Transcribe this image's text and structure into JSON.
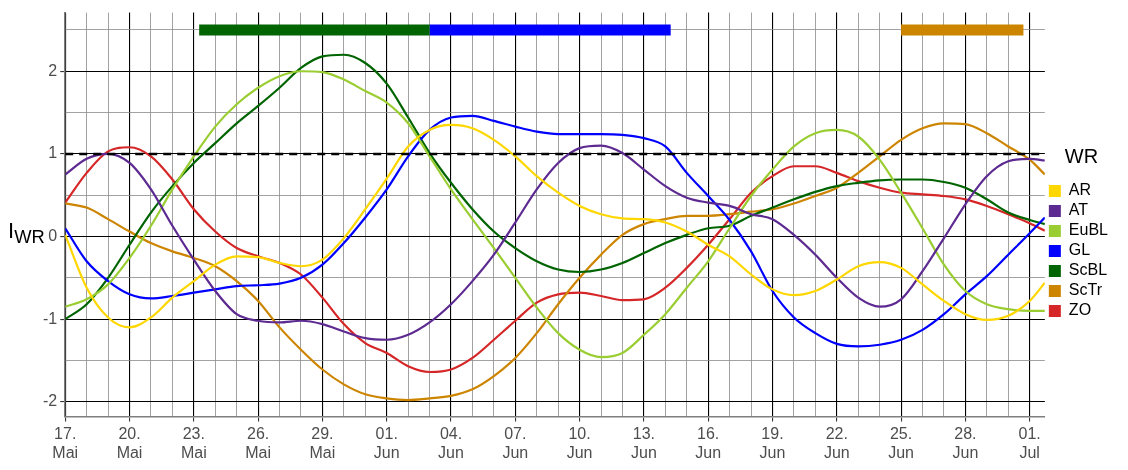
{
  "chart_data": {
    "type": "line",
    "ylabel": "I$_{WR}$",
    "legend_title": "WR",
    "legend": "right",
    "grid": true,
    "marker": "none",
    "line_style": "solid",
    "x": [
      "--05-17",
      "--05-18",
      "--05-19",
      "--05-20",
      "--05-21",
      "--05-22",
      "--05-23",
      "--05-24",
      "--05-25",
      "--05-26",
      "--05-27",
      "--05-28",
      "--05-29",
      "--05-30",
      "--05-31",
      "--06-01",
      "--06-02",
      "--06-03",
      "--06-04",
      "--06-05",
      "--06-06",
      "--06-07",
      "--06-08",
      "--06-09",
      "--06-10",
      "--06-11",
      "--06-12",
      "--06-13",
      "--06-14",
      "--06-15",
      "--06-16",
      "--06-17",
      "--06-18",
      "--06-19",
      "--06-20",
      "--06-21",
      "--06-22",
      "--06-23",
      "--06-24",
      "--06-25",
      "--06-26",
      "--06-27",
      "--06-28",
      "--06-29",
      "--06-30",
      "--07-01",
      "--07-01T17:00"
    ],
    "xlim": [
      "--05-17",
      "--07-01T17:00"
    ],
    "xticks": [
      {
        "value": "--05-17",
        "label": "17. Mai"
      },
      {
        "value": "--05-18",
        "label": null
      },
      {
        "value": "--05-19",
        "label": null
      },
      {
        "value": "--05-20",
        "label": "20. Mai"
      },
      {
        "value": "--05-21",
        "label": null
      },
      {
        "value": "--05-22",
        "label": null
      },
      {
        "value": "--05-23",
        "label": "23. Mai"
      },
      {
        "value": "--05-24",
        "label": null
      },
      {
        "value": "--05-25",
        "label": null
      },
      {
        "value": "--05-26",
        "label": "26. Mai"
      },
      {
        "value": "--05-27",
        "label": null
      },
      {
        "value": "--05-28",
        "label": null
      },
      {
        "value": "--05-29",
        "label": "29. Mai"
      },
      {
        "value": "--05-30",
        "label": null
      },
      {
        "value": "--05-31",
        "label": null
      },
      {
        "value": "--06-01",
        "label": "01. Jun"
      },
      {
        "value": "--06-02",
        "label": null
      },
      {
        "value": "--06-03",
        "label": null
      },
      {
        "value": "--06-04",
        "label": "04. Jun"
      },
      {
        "value": "--06-05",
        "label": null
      },
      {
        "value": "--06-06",
        "label": null
      },
      {
        "value": "--06-07",
        "label": "07. Jun"
      },
      {
        "value": "--06-08",
        "label": null
      },
      {
        "value": "--06-09",
        "label": null
      },
      {
        "value": "--06-10",
        "label": "10. Jun"
      },
      {
        "value": "--06-11",
        "label": null
      },
      {
        "value": "--06-12",
        "label": null
      },
      {
        "value": "--06-13",
        "label": "13. Jun"
      },
      {
        "value": "--06-14",
        "label": null
      },
      {
        "value": "--06-15",
        "label": null
      },
      {
        "value": "--06-16",
        "label": "16. Jun"
      },
      {
        "value": "--06-17",
        "label": null
      },
      {
        "value": "--06-18",
        "label": null
      },
      {
        "value": "--06-19",
        "label": "19. Jun"
      },
      {
        "value": "--06-20",
        "label": null
      },
      {
        "value": "--06-21",
        "label": null
      },
      {
        "value": "--06-22",
        "label": "22. Jun"
      },
      {
        "value": "--06-23",
        "label": null
      },
      {
        "value": "--06-24",
        "label": null
      },
      {
        "value": "--06-25",
        "label": "25. Jun"
      },
      {
        "value": "--06-26",
        "label": null
      },
      {
        "value": "--06-27",
        "label": null
      },
      {
        "value": "--06-28",
        "label": "28. Jun"
      },
      {
        "value": "--06-29",
        "label": null
      },
      {
        "value": "--06-30",
        "label": null
      },
      {
        "value": "--07-01",
        "label": "01. Jul"
      }
    ],
    "ylim": [
      -2.18,
      2.71
    ],
    "yticks": [
      -2,
      {
        "value": -1.5,
        "label": null
      },
      -1,
      {
        "value": -0.5,
        "label": null
      },
      0,
      {
        "value": 0.5,
        "label": null
      },
      1,
      {
        "value": 1.5,
        "label": null
      },
      2,
      {
        "value": 2.5,
        "label": null
      }
    ],
    "ref_lines": [
      {
        "axis": "y",
        "value": 1,
        "color": "#000000",
        "line_style": "dashed"
      }
    ],
    "series": [
      {
        "type": "line",
        "color": "#006400",
        "x": [
          "--05-23T06:00",
          "--06-03"
        ],
        "values": [
          2.5,
          2.5
        ]
      },
      {
        "type": "line",
        "color": "#0000ff",
        "x": [
          "--06-03",
          "--06-14T06:00"
        ],
        "values": [
          2.5,
          2.5
        ]
      },
      {
        "type": "line",
        "color": "#cd8500",
        "x": [
          "--06-25",
          "--06-30T17:00"
        ],
        "values": [
          2.5,
          2.5
        ]
      },
      {
        "name": "AR",
        "color": "#ffd700",
        "values": [
          0.02,
          -0.62,
          -0.98,
          -1.1,
          -0.98,
          -0.74,
          -0.54,
          -0.34,
          -0.24,
          -0.25,
          -0.32,
          -0.36,
          -0.28,
          -0.02,
          0.33,
          0.7,
          1.09,
          1.29,
          1.35,
          1.31,
          1.17,
          0.97,
          0.73,
          0.53,
          0.37,
          0.27,
          0.22,
          0.21,
          0.17,
          0.06,
          -0.1,
          -0.24,
          -0.46,
          -0.64,
          -0.71,
          -0.66,
          -0.52,
          -0.36,
          -0.31,
          -0.38,
          -0.58,
          -0.78,
          -0.94,
          -1.01,
          -0.96,
          -0.78,
          -0.56
        ]
      },
      {
        "name": "AT",
        "color": "#5d2a91",
        "values": [
          0.75,
          0.94,
          1.0,
          0.89,
          0.57,
          0.13,
          -0.28,
          -0.66,
          -0.94,
          -1.02,
          -1.04,
          -1.02,
          -1.06,
          -1.15,
          -1.23,
          -1.25,
          -1.19,
          -1.04,
          -0.82,
          -0.54,
          -0.22,
          0.17,
          0.57,
          0.89,
          1.07,
          1.1,
          1.01,
          0.81,
          0.61,
          0.47,
          0.41,
          0.37,
          0.27,
          0.21,
          0.02,
          -0.22,
          -0.5,
          -0.74,
          -0.85,
          -0.76,
          -0.42,
          -0.02,
          0.39,
          0.73,
          0.91,
          0.94,
          0.92
        ]
      },
      {
        "name": "EuBL",
        "color": "#9acd32",
        "values": [
          -0.85,
          -0.76,
          -0.58,
          -0.26,
          0.13,
          0.57,
          0.97,
          1.33,
          1.6,
          1.8,
          1.94,
          2.0,
          1.99,
          1.9,
          1.76,
          1.62,
          1.37,
          0.97,
          0.57,
          0.21,
          -0.14,
          -0.5,
          -0.86,
          -1.17,
          -1.37,
          -1.46,
          -1.41,
          -1.19,
          -0.94,
          -0.62,
          -0.3,
          0.1,
          0.49,
          0.81,
          1.09,
          1.25,
          1.29,
          1.21,
          0.93,
          0.53,
          0.1,
          -0.34,
          -0.66,
          -0.82,
          -0.88,
          -0.9,
          -0.9
        ]
      },
      {
        "name": "GL",
        "color": "#0000ff",
        "values": [
          0.1,
          -0.3,
          -0.54,
          -0.7,
          -0.75,
          -0.72,
          -0.68,
          -0.64,
          -0.6,
          -0.59,
          -0.57,
          -0.5,
          -0.34,
          -0.08,
          0.23,
          0.57,
          0.97,
          1.29,
          1.44,
          1.46,
          1.4,
          1.33,
          1.27,
          1.24,
          1.24,
          1.24,
          1.23,
          1.19,
          1.09,
          0.77,
          0.49,
          0.2,
          -0.18,
          -0.66,
          -0.98,
          -1.17,
          -1.3,
          -1.33,
          -1.31,
          -1.25,
          -1.13,
          -0.94,
          -0.7,
          -0.48,
          -0.22,
          0.04,
          0.23
        ]
      },
      {
        "name": "ScBL",
        "color": "#006400",
        "values": [
          -1.0,
          -0.82,
          -0.5,
          -0.1,
          0.29,
          0.61,
          0.89,
          1.13,
          1.37,
          1.58,
          1.8,
          2.04,
          2.18,
          2.2,
          2.1,
          1.85,
          1.44,
          1.01,
          0.65,
          0.33,
          0.06,
          -0.14,
          -0.3,
          -0.4,
          -0.43,
          -0.4,
          -0.32,
          -0.2,
          -0.08,
          0.02,
          0.1,
          0.13,
          0.25,
          0.35,
          0.45,
          0.54,
          0.61,
          0.65,
          0.68,
          0.69,
          0.69,
          0.66,
          0.59,
          0.45,
          0.29,
          0.2,
          0.15
        ]
      },
      {
        "name": "ScTr",
        "color": "#cd8500",
        "values": [
          0.4,
          0.35,
          0.21,
          0.06,
          -0.08,
          -0.18,
          -0.26,
          -0.36,
          -0.54,
          -0.78,
          -1.1,
          -1.37,
          -1.61,
          -1.79,
          -1.91,
          -1.96,
          -1.98,
          -1.96,
          -1.93,
          -1.85,
          -1.69,
          -1.47,
          -1.17,
          -0.82,
          -0.5,
          -0.22,
          0.02,
          0.15,
          0.21,
          0.25,
          0.25,
          0.27,
          0.3,
          0.33,
          0.4,
          0.49,
          0.59,
          0.77,
          0.97,
          1.17,
          1.31,
          1.37,
          1.36,
          1.25,
          1.09,
          0.93,
          0.75
        ]
      },
      {
        "name": "ZO",
        "color": "#d62728",
        "values": [
          0.41,
          0.77,
          1.03,
          1.08,
          0.97,
          0.69,
          0.33,
          0.06,
          -0.14,
          -0.24,
          -0.32,
          -0.46,
          -0.74,
          -1.06,
          -1.29,
          -1.41,
          -1.57,
          -1.64,
          -1.61,
          -1.47,
          -1.25,
          -1.02,
          -0.8,
          -0.7,
          -0.68,
          -0.72,
          -0.77,
          -0.76,
          -0.62,
          -0.38,
          -0.1,
          0.21,
          0.53,
          0.73,
          0.85,
          0.85,
          0.77,
          0.67,
          0.59,
          0.53,
          0.51,
          0.49,
          0.45,
          0.37,
          0.27,
          0.16,
          0.07
        ]
      }
    ]
  }
}
